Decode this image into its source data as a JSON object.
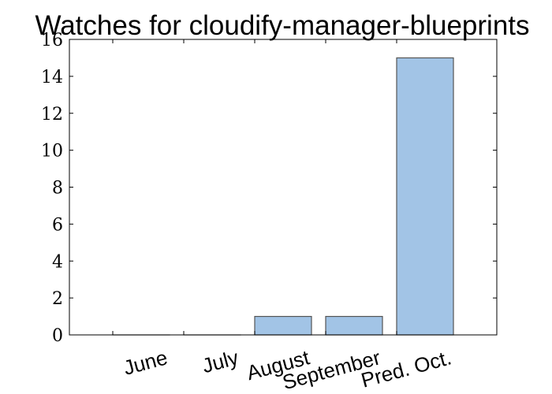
{
  "chart_data": {
    "type": "bar",
    "title": "Watches for cloudify-manager-blueprints",
    "xlabel": "",
    "ylabel": "",
    "categories": [
      "June",
      "July",
      "August",
      "September",
      "Pred. Oct."
    ],
    "values": [
      0,
      0,
      1,
      1,
      15
    ],
    "ylim": [
      0,
      16
    ],
    "yticks": [
      "0",
      "2",
      "4",
      "6",
      "8",
      "10",
      "12",
      "14",
      "16"
    ],
    "grid": false,
    "legend": "none",
    "bar_color": "#a2c4e6",
    "bar_edge_color": "#555555"
  }
}
